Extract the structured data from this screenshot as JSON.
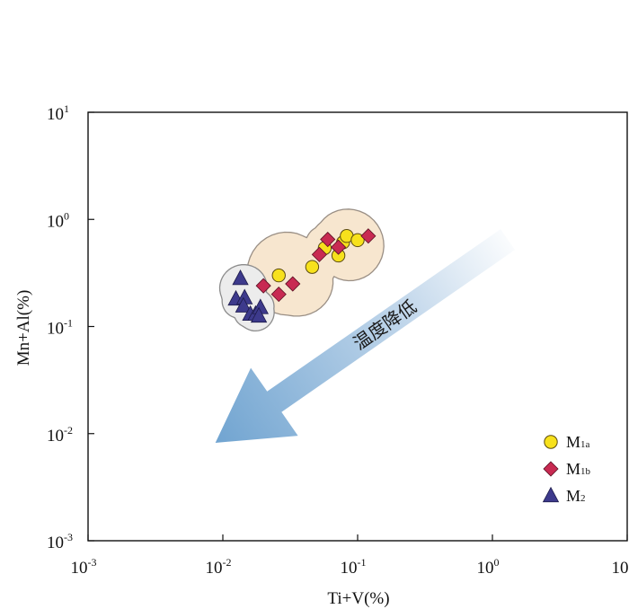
{
  "chart_data": {
    "type": "scatter",
    "xscale": "log",
    "yscale": "log",
    "xlim": [
      0.001,
      10
    ],
    "ylim": [
      0.001,
      10
    ],
    "xlabel": "Ti+V(%)",
    "ylabel": "Mn+Al(%)",
    "x_ticks": [
      {
        "value": 0.001,
        "base": "10",
        "exp": "-3"
      },
      {
        "value": 0.01,
        "base": "10",
        "exp": "-2"
      },
      {
        "value": 0.1,
        "base": "10",
        "exp": "-1"
      },
      {
        "value": 1,
        "base": "10",
        "exp": "0"
      },
      {
        "value": 10,
        "base": "10",
        "exp": "1"
      }
    ],
    "y_ticks": [
      {
        "value": 0.001,
        "base": "10",
        "exp": "-3"
      },
      {
        "value": 0.01,
        "base": "10",
        "exp": "-2"
      },
      {
        "value": 0.1,
        "base": "10",
        "exp": "-1"
      },
      {
        "value": 1,
        "base": "10",
        "exp": "0"
      },
      {
        "value": 10,
        "base": "10",
        "exp": "1"
      }
    ],
    "series": [
      {
        "name": "M1a",
        "label_main": "M",
        "label_sub": "1a",
        "marker": "circle",
        "color": "#f7e11c",
        "stroke": "#5a4a10",
        "points": [
          {
            "x": 0.026,
            "y": 0.3
          },
          {
            "x": 0.046,
            "y": 0.36
          },
          {
            "x": 0.057,
            "y": 0.54
          },
          {
            "x": 0.072,
            "y": 0.46
          },
          {
            "x": 0.078,
            "y": 0.61
          },
          {
            "x": 0.083,
            "y": 0.7
          },
          {
            "x": 0.1,
            "y": 0.64
          }
        ]
      },
      {
        "name": "M1b",
        "label_main": "M",
        "label_sub": "1b",
        "marker": "diamond",
        "color": "#c82a52",
        "stroke": "#5a0f22",
        "points": [
          {
            "x": 0.02,
            "y": 0.24
          },
          {
            "x": 0.026,
            "y": 0.2
          },
          {
            "x": 0.033,
            "y": 0.25
          },
          {
            "x": 0.052,
            "y": 0.47
          },
          {
            "x": 0.06,
            "y": 0.65
          },
          {
            "x": 0.072,
            "y": 0.55
          },
          {
            "x": 0.12,
            "y": 0.7
          }
        ]
      },
      {
        "name": "M2",
        "label_main": "M",
        "label_sub": "2",
        "marker": "triangle",
        "color": "#3d3a8c",
        "stroke": "#1d1b4a",
        "points": [
          {
            "x": 0.0135,
            "y": 0.28
          },
          {
            "x": 0.0125,
            "y": 0.18
          },
          {
            "x": 0.0145,
            "y": 0.185
          },
          {
            "x": 0.0142,
            "y": 0.155
          },
          {
            "x": 0.016,
            "y": 0.13
          },
          {
            "x": 0.0175,
            "y": 0.13
          },
          {
            "x": 0.019,
            "y": 0.15
          },
          {
            "x": 0.0185,
            "y": 0.125
          }
        ]
      }
    ],
    "legend_position": "bottom-right",
    "annotation": {
      "text": "温度降低",
      "arrow_from": {
        "x": 1.3,
        "y": 0.65
      },
      "arrow_to": {
        "x": 0.0088,
        "y": 0.0082
      },
      "color": "#6fa3d0"
    },
    "grid": false
  }
}
